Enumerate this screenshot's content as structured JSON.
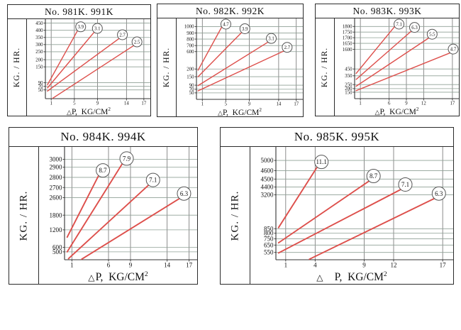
{
  "colors": {
    "line": "#dd4f4b",
    "grid_h": "#8fa096",
    "grid_v": "#6f6f6f",
    "frame": "#333333",
    "circle_stroke": "#555555",
    "text": "#111111",
    "background": "#ffffff"
  },
  "chart_data": [
    {
      "type": "line",
      "title": "No. 981K. 991K",
      "ylabel": "KG. / HR.",
      "xlabel": {
        "triangle": "△",
        "text": "P,  KG/CM",
        "sup": "2"
      },
      "grid": true,
      "legend_position": "circled-labels-at-line-ends",
      "x_range": [
        0,
        18
      ],
      "x_ticks": [
        1,
        5,
        9,
        14,
        17
      ],
      "y_ticks": [
        {
          "label": "450",
          "f": 0.95
        },
        {
          "label": "400",
          "f": 0.86
        },
        {
          "label": "350",
          "f": 0.77
        },
        {
          "label": "300",
          "f": 0.68
        },
        {
          "label": "250",
          "f": 0.59
        },
        {
          "label": "200",
          "f": 0.49
        },
        {
          "label": "150",
          "f": 0.4
        },
        {
          "label": "90",
          "f": 0.2
        },
        {
          "label": "70",
          "f": 0.155
        },
        {
          "label": "50",
          "f": 0.11
        }
      ],
      "series": [
        {
          "name": "3.9",
          "start": [
            0.02,
            0.175
          ],
          "end": [
            0.31,
            0.86
          ]
        },
        {
          "name": "3.1",
          "start": [
            0.02,
            0.135
          ],
          "end": [
            0.47,
            0.84
          ]
        },
        {
          "name": "2.7",
          "start": [
            0.02,
            0.095
          ],
          "end": [
            0.71,
            0.76
          ]
        },
        {
          "name": "2.5",
          "start": [
            0.07,
            0.005
          ],
          "end": [
            0.85,
            0.67
          ]
        }
      ]
    },
    {
      "type": "line",
      "title": "No. 982K. 992K",
      "ylabel": "KG. / HR.",
      "xlabel": {
        "triangle": "△",
        "text": "P,  KG/CM",
        "sup": "2"
      },
      "grid": true,
      "legend_position": "circled-labels-at-line-ends",
      "x_range": [
        0,
        18
      ],
      "x_ticks": [
        1,
        5,
        9,
        14,
        17
      ],
      "y_ticks": [
        {
          "label": "1000",
          "f": 0.9
        },
        {
          "label": "900",
          "f": 0.82
        },
        {
          "label": "800",
          "f": 0.745
        },
        {
          "label": "700",
          "f": 0.665
        },
        {
          "label": "600",
          "f": 0.59
        },
        {
          "label": "200",
          "f": 0.375
        },
        {
          "label": "150",
          "f": 0.28
        },
        {
          "label": "90",
          "f": 0.175
        },
        {
          "label": "70",
          "f": 0.125
        },
        {
          "label": "50",
          "f": 0.08
        }
      ],
      "series": [
        {
          "name": "4.7",
          "start": [
            0.015,
            0.36
          ],
          "end": [
            0.25,
            0.92
          ]
        },
        {
          "name": "3.9",
          "start": [
            0.015,
            0.28
          ],
          "end": [
            0.43,
            0.83
          ]
        },
        {
          "name": "3.1",
          "start": [
            0.015,
            0.17
          ],
          "end": [
            0.68,
            0.71
          ]
        },
        {
          "name": "2.7",
          "start": [
            0.015,
            0.105
          ],
          "end": [
            0.83,
            0.6
          ]
        }
      ]
    },
    {
      "type": "line",
      "title": "No. 983K.  993K",
      "ylabel": "KG. / HR.",
      "xlabel": {
        "triangle": "△",
        "text": "P,  KG/CM",
        "sup": "2"
      },
      "grid": true,
      "legend_position": "circled-labels-at-line-ends",
      "x_range": [
        0,
        18
      ],
      "x_ticks": [
        1,
        6,
        9,
        12,
        17
      ],
      "y_ticks": [
        {
          "label": "1800",
          "f": 0.9
        },
        {
          "label": "1750",
          "f": 0.83
        },
        {
          "label": "1700",
          "f": 0.76
        },
        {
          "label": "1650",
          "f": 0.69
        },
        {
          "label": "1600",
          "f": 0.615
        },
        {
          "label": "450",
          "f": 0.37
        },
        {
          "label": "350",
          "f": 0.285
        },
        {
          "label": "250",
          "f": 0.175
        },
        {
          "label": "200",
          "f": 0.125
        },
        {
          "label": "150",
          "f": 0.08
        }
      ],
      "series": [
        {
          "name": "7.1",
          "start": [
            0.015,
            0.315
          ],
          "end": [
            0.4,
            0.92
          ]
        },
        {
          "name": "6.3",
          "start": [
            0.015,
            0.24
          ],
          "end": [
            0.55,
            0.845
          ]
        },
        {
          "name": "5.5",
          "start": [
            0.015,
            0.155
          ],
          "end": [
            0.72,
            0.76
          ]
        },
        {
          "name": "4.7",
          "start": [
            0.015,
            0.1
          ],
          "end": [
            0.93,
            0.575
          ]
        }
      ]
    },
    {
      "type": "line",
      "title": "No. 984K.  994K",
      "ylabel": "KG. / HR.",
      "xlabel": {
        "triangle": "△",
        "text": "P,  KG/CM",
        "sup": "2"
      },
      "grid": true,
      "legend_position": "circled-labels-at-line-ends",
      "x_range": [
        0,
        18
      ],
      "x_ticks": [
        1,
        6,
        9,
        14,
        17
      ],
      "y_ticks": [
        {
          "label": "3000",
          "f": 0.89
        },
        {
          "label": "2900",
          "f": 0.82
        },
        {
          "label": "2800",
          "f": 0.73
        },
        {
          "label": "2700",
          "f": 0.64
        },
        {
          "label": "2600",
          "f": 0.55
        },
        {
          "label": "1800",
          "f": 0.395
        },
        {
          "label": "1200",
          "f": 0.265
        },
        {
          "label": "600",
          "f": 0.11
        },
        {
          "label": "500",
          "f": 0.07
        }
      ],
      "series": [
        {
          "name": "8.7",
          "start": [
            0.02,
            0.2
          ],
          "end": [
            0.26,
            0.75
          ]
        },
        {
          "name": "7.9",
          "start": [
            0.02,
            0.07
          ],
          "end": [
            0.44,
            0.855
          ]
        },
        {
          "name": "7.1",
          "start": [
            0.03,
            0.01
          ],
          "end": [
            0.64,
            0.665
          ]
        },
        {
          "name": "6.3",
          "start": [
            0.13,
            0.005
          ],
          "end": [
            0.875,
            0.545
          ]
        }
      ]
    },
    {
      "type": "line",
      "title": "No. 985K.  995K",
      "ylabel": "KG. / HR.",
      "xlabel": {
        "triangle": "△",
        "text": "P,  KG/CM",
        "sup": "2"
      },
      "grid": true,
      "legend_position": "circled-labels-at-line-ends",
      "x_range": [
        0,
        18
      ],
      "x_ticks": [
        1,
        4,
        9,
        12,
        17
      ],
      "y_ticks": [
        {
          "label": "5000",
          "f": 0.88
        },
        {
          "label": "4600",
          "f": 0.79
        },
        {
          "label": "4500",
          "f": 0.715
        },
        {
          "label": "4400",
          "f": 0.645
        },
        {
          "label": "3200",
          "f": 0.575
        },
        {
          "label": "850",
          "f": 0.275
        },
        {
          "label": "800",
          "f": 0.235
        },
        {
          "label": "750",
          "f": 0.185
        },
        {
          "label": "650",
          "f": 0.13
        },
        {
          "label": "550",
          "f": 0.065
        }
      ],
      "series": [
        {
          "name": "11.1",
          "start": [
            0.015,
            0.285
          ],
          "end": [
            0.235,
            0.825
          ]
        },
        {
          "name": "8.7",
          "start": [
            0.015,
            0.15
          ],
          "end": [
            0.53,
            0.7
          ]
        },
        {
          "name": "7.1",
          "start": [
            0.015,
            0.06
          ],
          "end": [
            0.71,
            0.625
          ]
        },
        {
          "name": "6.3",
          "start": [
            0.19,
            0.005
          ],
          "end": [
            0.9,
            0.545
          ]
        }
      ]
    }
  ]
}
